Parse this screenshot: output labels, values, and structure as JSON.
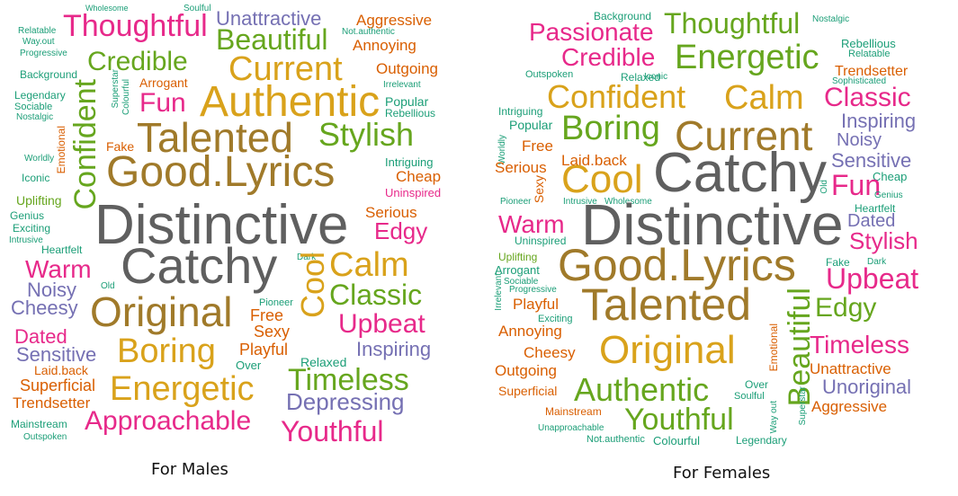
{
  "palette": {
    "grey": "#5f5f5f",
    "gold": "#d9a21b",
    "olive": "#a07a2a",
    "green": "#66a61e",
    "magenta": "#e7298a",
    "purple": "#7570b3",
    "orange": "#d95f02",
    "teal": "#1b9e77"
  },
  "clouds": [
    {
      "caption": "For Males",
      "words": [
        {
          "text": "Wholesome",
          "color": "teal"
        },
        {
          "text": "Soulful",
          "color": "teal"
        },
        {
          "text": "Relatable",
          "color": "teal"
        },
        {
          "text": "Way.out",
          "color": "teal"
        },
        {
          "text": "Progressive",
          "color": "teal"
        },
        {
          "text": "Thoughtful",
          "color": "magenta"
        },
        {
          "text": "Unattractive",
          "color": "purple"
        },
        {
          "text": "Aggressive",
          "color": "orange"
        },
        {
          "text": "Not.authentic",
          "color": "teal"
        },
        {
          "text": "Beautiful",
          "color": "green"
        },
        {
          "text": "Annoying",
          "color": "orange"
        },
        {
          "text": "Credible",
          "color": "green"
        },
        {
          "text": "Current",
          "color": "gold"
        },
        {
          "text": "Outgoing",
          "color": "orange"
        },
        {
          "text": "Background",
          "color": "teal"
        },
        {
          "text": "Superstar",
          "color": "teal"
        },
        {
          "text": "Colourful",
          "color": "teal"
        },
        {
          "text": "Arrogant",
          "color": "orange"
        },
        {
          "text": "Irrelevant",
          "color": "teal"
        },
        {
          "text": "Legendary",
          "color": "teal"
        },
        {
          "text": "Sociable",
          "color": "teal"
        },
        {
          "text": "Nostalgic",
          "color": "teal"
        },
        {
          "text": "Confident",
          "color": "green"
        },
        {
          "text": "Fun",
          "color": "magenta"
        },
        {
          "text": "Authentic",
          "color": "gold"
        },
        {
          "text": "Popular",
          "color": "teal"
        },
        {
          "text": "Rebellious",
          "color": "teal"
        },
        {
          "text": "Talented",
          "color": "olive"
        },
        {
          "text": "Stylish",
          "color": "green"
        },
        {
          "text": "Emotional",
          "color": "orange"
        },
        {
          "text": "Fake",
          "color": "orange"
        },
        {
          "text": "Good.Lyrics",
          "color": "olive"
        },
        {
          "text": "Intriguing",
          "color": "teal"
        },
        {
          "text": "Cheap",
          "color": "orange"
        },
        {
          "text": "Worldly",
          "color": "teal"
        },
        {
          "text": "Iconic",
          "color": "teal"
        },
        {
          "text": "Uninspired",
          "color": "magenta"
        },
        {
          "text": "Uplifting",
          "color": "green"
        },
        {
          "text": "Genius",
          "color": "teal"
        },
        {
          "text": "Distinctive",
          "color": "grey"
        },
        {
          "text": "Serious",
          "color": "orange"
        },
        {
          "text": "Exciting",
          "color": "teal"
        },
        {
          "text": "Edgy",
          "color": "magenta"
        },
        {
          "text": "Intrusive",
          "color": "teal"
        },
        {
          "text": "Heartfelt",
          "color": "teal"
        },
        {
          "text": "Catchy",
          "color": "grey"
        },
        {
          "text": "Warm",
          "color": "magenta"
        },
        {
          "text": "Dark",
          "color": "teal"
        },
        {
          "text": "Calm",
          "color": "gold"
        },
        {
          "text": "Noisy",
          "color": "purple"
        },
        {
          "text": "Old",
          "color": "teal"
        },
        {
          "text": "Classic",
          "color": "green"
        },
        {
          "text": "Cheesy",
          "color": "purple"
        },
        {
          "text": "Original",
          "color": "olive"
        },
        {
          "text": "Pioneer",
          "color": "teal"
        },
        {
          "text": "Free",
          "color": "orange"
        },
        {
          "text": "Cool",
          "color": "gold"
        },
        {
          "text": "Upbeat",
          "color": "magenta"
        },
        {
          "text": "Dated",
          "color": "magenta"
        },
        {
          "text": "Sexy",
          "color": "orange"
        },
        {
          "text": "Sensitive",
          "color": "purple"
        },
        {
          "text": "Boring",
          "color": "gold"
        },
        {
          "text": "Playful",
          "color": "orange"
        },
        {
          "text": "Inspiring",
          "color": "purple"
        },
        {
          "text": "Laid.back",
          "color": "orange"
        },
        {
          "text": "Over",
          "color": "teal"
        },
        {
          "text": "Relaxed",
          "color": "teal"
        },
        {
          "text": "Superficial",
          "color": "orange"
        },
        {
          "text": "Energetic",
          "color": "gold"
        },
        {
          "text": "Timeless",
          "color": "green"
        },
        {
          "text": "Trendsetter",
          "color": "orange"
        },
        {
          "text": "Depressing",
          "color": "purple"
        },
        {
          "text": "Mainstream",
          "color": "teal"
        },
        {
          "text": "Approachable",
          "color": "magenta"
        },
        {
          "text": "Youthful",
          "color": "magenta"
        },
        {
          "text": "Outspoken",
          "color": "teal"
        }
      ]
    },
    {
      "caption": "For Females",
      "words": [
        {
          "text": "Background",
          "color": "teal"
        },
        {
          "text": "Thoughtful",
          "color": "green"
        },
        {
          "text": "Nostalgic",
          "color": "teal"
        },
        {
          "text": "Passionate",
          "color": "magenta"
        },
        {
          "text": "Rebellious",
          "color": "teal"
        },
        {
          "text": "Credible",
          "color": "magenta"
        },
        {
          "text": "Energetic",
          "color": "green"
        },
        {
          "text": "Relatable",
          "color": "teal"
        },
        {
          "text": "Trendsetter",
          "color": "orange"
        },
        {
          "text": "Outspoken",
          "color": "teal"
        },
        {
          "text": "Relaxed",
          "color": "teal"
        },
        {
          "text": "Iconic",
          "color": "teal"
        },
        {
          "text": "Sophisticated",
          "color": "teal"
        },
        {
          "text": "Confident",
          "color": "gold"
        },
        {
          "text": "Calm",
          "color": "gold"
        },
        {
          "text": "Classic",
          "color": "magenta"
        },
        {
          "text": "Intriguing",
          "color": "teal"
        },
        {
          "text": "Popular",
          "color": "teal"
        },
        {
          "text": "Boring",
          "color": "green"
        },
        {
          "text": "Current",
          "color": "olive"
        },
        {
          "text": "Inspiring",
          "color": "purple"
        },
        {
          "text": "Worldly",
          "color": "teal"
        },
        {
          "text": "Free",
          "color": "orange"
        },
        {
          "text": "Noisy",
          "color": "purple"
        },
        {
          "text": "Laid.back",
          "color": "orange"
        },
        {
          "text": "Sensitive",
          "color": "purple"
        },
        {
          "text": "Serious",
          "color": "orange"
        },
        {
          "text": "Cool",
          "color": "gold"
        },
        {
          "text": "Catchy",
          "color": "grey"
        },
        {
          "text": "Cheap",
          "color": "teal"
        },
        {
          "text": "Sexy",
          "color": "orange"
        },
        {
          "text": "Old",
          "color": "teal"
        },
        {
          "text": "Fun",
          "color": "magenta"
        },
        {
          "text": "Pioneer",
          "color": "teal"
        },
        {
          "text": "Intrusive",
          "color": "teal"
        },
        {
          "text": "Wholesome",
          "color": "teal"
        },
        {
          "text": "Genius",
          "color": "teal"
        },
        {
          "text": "Heartfelt",
          "color": "teal"
        },
        {
          "text": "Warm",
          "color": "magenta"
        },
        {
          "text": "Distinctive",
          "color": "grey"
        },
        {
          "text": "Dated",
          "color": "purple"
        },
        {
          "text": "Uninspired",
          "color": "teal"
        },
        {
          "text": "Stylish",
          "color": "magenta"
        },
        {
          "text": "Uplifting",
          "color": "green"
        },
        {
          "text": "Good.Lyrics",
          "color": "olive"
        },
        {
          "text": "Fake",
          "color": "teal"
        },
        {
          "text": "Dark",
          "color": "teal"
        },
        {
          "text": "Arrogant",
          "color": "teal"
        },
        {
          "text": "Sociable",
          "color": "teal"
        },
        {
          "text": "Irrelevant",
          "color": "teal"
        },
        {
          "text": "Progressive",
          "color": "teal"
        },
        {
          "text": "Upbeat",
          "color": "magenta"
        },
        {
          "text": "Playful",
          "color": "orange"
        },
        {
          "text": "Talented",
          "color": "olive"
        },
        {
          "text": "Beautiful",
          "color": "green"
        },
        {
          "text": "Edgy",
          "color": "green"
        },
        {
          "text": "Annoying",
          "color": "orange"
        },
        {
          "text": "Exciting",
          "color": "teal"
        },
        {
          "text": "Cheesy",
          "color": "orange"
        },
        {
          "text": "Original",
          "color": "gold"
        },
        {
          "text": "Emotional",
          "color": "orange"
        },
        {
          "text": "Timeless",
          "color": "magenta"
        },
        {
          "text": "Outgoing",
          "color": "orange"
        },
        {
          "text": "Unattractive",
          "color": "orange"
        },
        {
          "text": "Superficial",
          "color": "orange"
        },
        {
          "text": "Authentic",
          "color": "green"
        },
        {
          "text": "Over",
          "color": "teal"
        },
        {
          "text": "Soulful",
          "color": "teal"
        },
        {
          "text": "Unoriginal",
          "color": "purple"
        },
        {
          "text": "Superstar",
          "color": "teal"
        },
        {
          "text": "Aggressive",
          "color": "orange"
        },
        {
          "text": "Mainstream",
          "color": "orange"
        },
        {
          "text": "Way out",
          "color": "teal"
        },
        {
          "text": "Youthful",
          "color": "green"
        },
        {
          "text": "Unapproachable",
          "color": "teal"
        },
        {
          "text": "Not.authentic",
          "color": "teal"
        },
        {
          "text": "Colourful",
          "color": "teal"
        },
        {
          "text": "Legendary",
          "color": "teal"
        }
      ]
    }
  ]
}
